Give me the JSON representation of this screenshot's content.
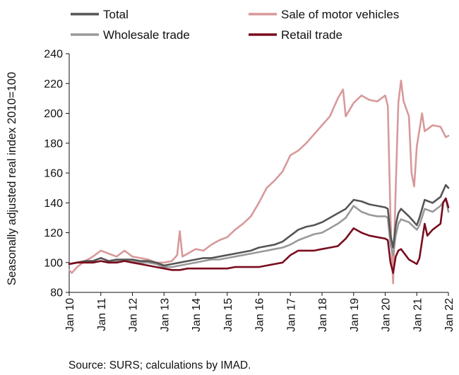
{
  "chart_data": {
    "type": "line",
    "ylabel": "Seasonally adjusted real index 2010=100",
    "ylim": [
      80,
      240
    ],
    "yticks": [
      80,
      100,
      120,
      140,
      160,
      180,
      200,
      220,
      240
    ],
    "xlim": [
      "2010-01",
      "2022-01"
    ],
    "xticks": [
      "Jan 10",
      "Jan 11",
      "Jan 12",
      "Jan 13",
      "Jan 14",
      "Jan 15",
      "Jan 16",
      "Jan 17",
      "Jan 18",
      "Jan 19",
      "Jan 20",
      "Jan 21",
      "Jan 22"
    ],
    "legend_position": "top",
    "grid": false,
    "source": "Source: SURS; calculations by IMAD.",
    "series": [
      {
        "name": "Total",
        "color": "#555555",
        "points": [
          [
            "2010-01",
            99
          ],
          [
            "2010-04",
            100
          ],
          [
            "2010-07",
            101
          ],
          [
            "2010-10",
            101
          ],
          [
            "2011-01",
            103
          ],
          [
            "2011-04",
            101
          ],
          [
            "2011-07",
            102
          ],
          [
            "2011-10",
            102
          ],
          [
            "2012-01",
            102
          ],
          [
            "2012-04",
            101
          ],
          [
            "2012-07",
            101
          ],
          [
            "2012-10",
            100
          ],
          [
            "2013-01",
            98
          ],
          [
            "2013-04",
            99
          ],
          [
            "2013-07",
            100
          ],
          [
            "2013-10",
            101
          ],
          [
            "2014-01",
            102
          ],
          [
            "2014-04",
            103
          ],
          [
            "2014-07",
            103
          ],
          [
            "2014-10",
            104
          ],
          [
            "2015-01",
            105
          ],
          [
            "2015-04",
            106
          ],
          [
            "2015-07",
            107
          ],
          [
            "2015-10",
            108
          ],
          [
            "2016-01",
            110
          ],
          [
            "2016-04",
            111
          ],
          [
            "2016-07",
            112
          ],
          [
            "2016-10",
            114
          ],
          [
            "2017-01",
            118
          ],
          [
            "2017-04",
            122
          ],
          [
            "2017-07",
            124
          ],
          [
            "2017-10",
            125
          ],
          [
            "2018-01",
            127
          ],
          [
            "2018-04",
            130
          ],
          [
            "2018-07",
            133
          ],
          [
            "2018-10",
            136
          ],
          [
            "2019-01",
            142
          ],
          [
            "2019-04",
            141
          ],
          [
            "2019-07",
            139
          ],
          [
            "2019-10",
            138
          ],
          [
            "2020-01",
            137
          ],
          [
            "2020-02",
            136
          ],
          [
            "2020-03",
            118
          ],
          [
            "2020-04",
            110
          ],
          [
            "2020-05",
            125
          ],
          [
            "2020-06",
            133
          ],
          [
            "2020-07",
            136
          ],
          [
            "2020-10",
            131
          ],
          [
            "2021-01",
            125
          ],
          [
            "2021-02",
            130
          ],
          [
            "2021-04",
            142
          ],
          [
            "2021-07",
            140
          ],
          [
            "2021-10",
            144
          ],
          [
            "2021-12",
            152
          ],
          [
            "2022-01",
            150
          ]
        ]
      },
      {
        "name": "Sale of motor vehicles",
        "color": "#d8999a",
        "points": [
          [
            "2010-01",
            95
          ],
          [
            "2010-02",
            93
          ],
          [
            "2010-04",
            97
          ],
          [
            "2010-07",
            101
          ],
          [
            "2010-10",
            104
          ],
          [
            "2011-01",
            108
          ],
          [
            "2011-04",
            106
          ],
          [
            "2011-07",
            104
          ],
          [
            "2011-10",
            108
          ],
          [
            "2012-01",
            104
          ],
          [
            "2012-04",
            103
          ],
          [
            "2012-07",
            102
          ],
          [
            "2012-10",
            100
          ],
          [
            "2013-01",
            100
          ],
          [
            "2013-04",
            101
          ],
          [
            "2013-06",
            105
          ],
          [
            "2013-07",
            121
          ],
          [
            "2013-08",
            104
          ],
          [
            "2013-10",
            106
          ],
          [
            "2014-01",
            109
          ],
          [
            "2014-04",
            108
          ],
          [
            "2014-07",
            112
          ],
          [
            "2014-10",
            115
          ],
          [
            "2015-01",
            117
          ],
          [
            "2015-04",
            122
          ],
          [
            "2015-07",
            126
          ],
          [
            "2015-10",
            131
          ],
          [
            "2016-01",
            140
          ],
          [
            "2016-04",
            150
          ],
          [
            "2016-07",
            155
          ],
          [
            "2016-10",
            161
          ],
          [
            "2017-01",
            172
          ],
          [
            "2017-04",
            175
          ],
          [
            "2017-07",
            180
          ],
          [
            "2017-10",
            186
          ],
          [
            "2018-01",
            192
          ],
          [
            "2018-04",
            198
          ],
          [
            "2018-07",
            210
          ],
          [
            "2018-09",
            216
          ],
          [
            "2018-10",
            198
          ],
          [
            "2019-01",
            207
          ],
          [
            "2019-04",
            212
          ],
          [
            "2019-07",
            209
          ],
          [
            "2019-10",
            208
          ],
          [
            "2020-01",
            212
          ],
          [
            "2020-02",
            205
          ],
          [
            "2020-03",
            130
          ],
          [
            "2020-04",
            86
          ],
          [
            "2020-05",
            150
          ],
          [
            "2020-06",
            207
          ],
          [
            "2020-07",
            222
          ],
          [
            "2020-08",
            208
          ],
          [
            "2020-10",
            198
          ],
          [
            "2020-11",
            160
          ],
          [
            "2020-12",
            151
          ],
          [
            "2021-01",
            178
          ],
          [
            "2021-03",
            200
          ],
          [
            "2021-04",
            188
          ],
          [
            "2021-07",
            192
          ],
          [
            "2021-10",
            191
          ],
          [
            "2021-12",
            184
          ],
          [
            "2022-01",
            185
          ]
        ]
      },
      {
        "name": "Wholesale trade",
        "color": "#999999",
        "points": [
          [
            "2010-01",
            99
          ],
          [
            "2010-04",
            100
          ],
          [
            "2010-07",
            101
          ],
          [
            "2010-10",
            100
          ],
          [
            "2011-01",
            101
          ],
          [
            "2011-04",
            100
          ],
          [
            "2011-07",
            101
          ],
          [
            "2011-10",
            101
          ],
          [
            "2012-01",
            101
          ],
          [
            "2012-04",
            100
          ],
          [
            "2012-07",
            100
          ],
          [
            "2012-10",
            99
          ],
          [
            "2013-01",
            97
          ],
          [
            "2013-04",
            97
          ],
          [
            "2013-07",
            98
          ],
          [
            "2013-10",
            99
          ],
          [
            "2014-01",
            100
          ],
          [
            "2014-04",
            101
          ],
          [
            "2014-07",
            102
          ],
          [
            "2014-10",
            102
          ],
          [
            "2015-01",
            103
          ],
          [
            "2015-04",
            104
          ],
          [
            "2015-07",
            105
          ],
          [
            "2015-10",
            106
          ],
          [
            "2016-01",
            107
          ],
          [
            "2016-04",
            108
          ],
          [
            "2016-07",
            109
          ],
          [
            "2016-10",
            110
          ],
          [
            "2017-01",
            112
          ],
          [
            "2017-04",
            115
          ],
          [
            "2017-07",
            117
          ],
          [
            "2017-10",
            119
          ],
          [
            "2018-01",
            120
          ],
          [
            "2018-04",
            123
          ],
          [
            "2018-07",
            126
          ],
          [
            "2018-10",
            130
          ],
          [
            "2019-01",
            138
          ],
          [
            "2019-04",
            134
          ],
          [
            "2019-07",
            132
          ],
          [
            "2019-10",
            131
          ],
          [
            "2020-01",
            131
          ],
          [
            "2020-02",
            130
          ],
          [
            "2020-03",
            112
          ],
          [
            "2020-04",
            105
          ],
          [
            "2020-05",
            118
          ],
          [
            "2020-06",
            126
          ],
          [
            "2020-07",
            129
          ],
          [
            "2020-10",
            127
          ],
          [
            "2021-01",
            122
          ],
          [
            "2021-02",
            125
          ],
          [
            "2021-04",
            136
          ],
          [
            "2021-07",
            134
          ],
          [
            "2021-10",
            138
          ],
          [
            "2021-12",
            143
          ],
          [
            "2022-01",
            134
          ]
        ]
      },
      {
        "name": "Retail trade",
        "color": "#7a0c1e",
        "points": [
          [
            "2010-01",
            99
          ],
          [
            "2010-04",
            100
          ],
          [
            "2010-07",
            100
          ],
          [
            "2010-10",
            100
          ],
          [
            "2011-01",
            101
          ],
          [
            "2011-04",
            100
          ],
          [
            "2011-07",
            100
          ],
          [
            "2011-10",
            101
          ],
          [
            "2012-01",
            100
          ],
          [
            "2012-04",
            99
          ],
          [
            "2012-07",
            98
          ],
          [
            "2012-10",
            97
          ],
          [
            "2013-01",
            96
          ],
          [
            "2013-04",
            95
          ],
          [
            "2013-07",
            95
          ],
          [
            "2013-10",
            96
          ],
          [
            "2014-01",
            96
          ],
          [
            "2014-04",
            96
          ],
          [
            "2014-07",
            96
          ],
          [
            "2014-10",
            96
          ],
          [
            "2015-01",
            96
          ],
          [
            "2015-04",
            97
          ],
          [
            "2015-07",
            97
          ],
          [
            "2015-10",
            97
          ],
          [
            "2016-01",
            97
          ],
          [
            "2016-04",
            98
          ],
          [
            "2016-07",
            99
          ],
          [
            "2016-10",
            100
          ],
          [
            "2017-01",
            105
          ],
          [
            "2017-04",
            108
          ],
          [
            "2017-07",
            108
          ],
          [
            "2017-10",
            108
          ],
          [
            "2018-01",
            109
          ],
          [
            "2018-04",
            110
          ],
          [
            "2018-07",
            111
          ],
          [
            "2018-10",
            116
          ],
          [
            "2019-01",
            123
          ],
          [
            "2019-04",
            120
          ],
          [
            "2019-07",
            118
          ],
          [
            "2019-10",
            117
          ],
          [
            "2020-01",
            116
          ],
          [
            "2020-02",
            115
          ],
          [
            "2020-03",
            100
          ],
          [
            "2020-04",
            93
          ],
          [
            "2020-05",
            104
          ],
          [
            "2020-06",
            108
          ],
          [
            "2020-07",
            109
          ],
          [
            "2020-10",
            102
          ],
          [
            "2021-01",
            99
          ],
          [
            "2021-02",
            103
          ],
          [
            "2021-04",
            126
          ],
          [
            "2021-05",
            118
          ],
          [
            "2021-07",
            122
          ],
          [
            "2021-10",
            126
          ],
          [
            "2021-11",
            140
          ],
          [
            "2021-12",
            143
          ],
          [
            "2022-01",
            137
          ]
        ]
      }
    ]
  }
}
